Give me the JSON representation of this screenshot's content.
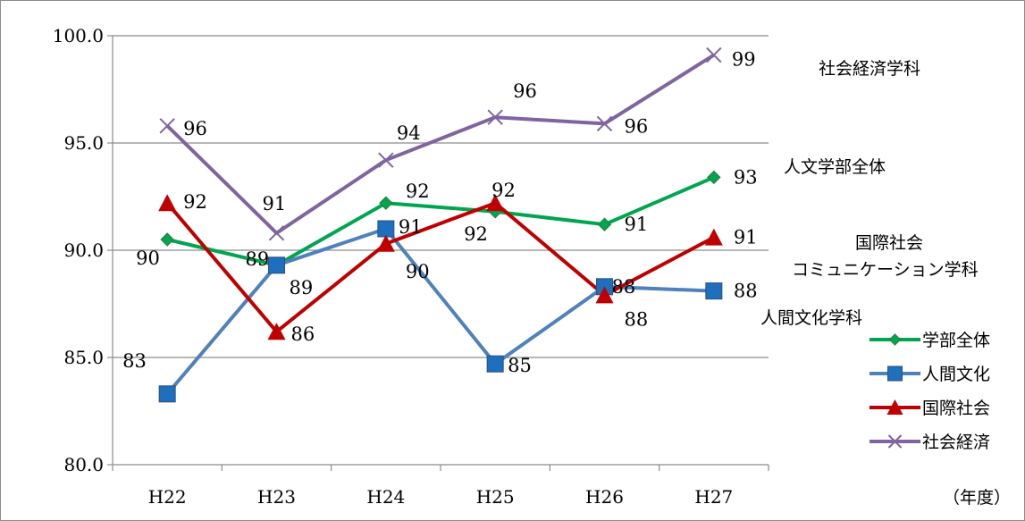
{
  "chart_data": {
    "type": "line",
    "categories": [
      "H22",
      "H23",
      "H24",
      "H25",
      "H26",
      "H27"
    ],
    "ylim": [
      80,
      100
    ],
    "yticks": [
      "80.0",
      "85.0",
      "90.0",
      "95.0",
      "100.0"
    ],
    "ytick_values": [
      80,
      85,
      90,
      95,
      100
    ],
    "grid": true,
    "legend_placement": "right",
    "unit_label": "（年度）",
    "series": [
      {
        "name": "学部全体",
        "color": "#00a550",
        "marker": "diamond",
        "values": [
          90.5,
          89.3,
          92.2,
          91.8,
          91.2,
          93.4
        ],
        "labels": [
          "90",
          "89",
          "92",
          "92",
          "91",
          "93"
        ]
      },
      {
        "name": "人間文化",
        "color": "#4f81bd",
        "marker": "square",
        "values": [
          83.3,
          89.3,
          91.0,
          84.7,
          88.3,
          88.1
        ],
        "labels": [
          "83",
          "89",
          "91",
          "85",
          "88",
          "88"
        ]
      },
      {
        "name": "国際社会",
        "color": "#c00000",
        "marker": "triangle",
        "values": [
          92.2,
          86.2,
          90.3,
          92.2,
          87.9,
          90.6
        ],
        "labels": [
          "92",
          "86",
          "90",
          "92",
          "88",
          "91"
        ]
      },
      {
        "name": "社会経済",
        "color": "#8064a2",
        "marker": "x",
        "values": [
          95.8,
          90.8,
          94.2,
          96.2,
          95.9,
          99.1
        ],
        "labels": [
          "96",
          "91",
          "94",
          "96",
          "96",
          "99"
        ]
      }
    ],
    "annotations": [
      {
        "text": "社会経済学科"
      },
      {
        "text": "人文学部全体"
      },
      {
        "text": "国際社会"
      },
      {
        "text": "コミュニケーション学科"
      },
      {
        "text": "人間文化学科"
      }
    ]
  }
}
